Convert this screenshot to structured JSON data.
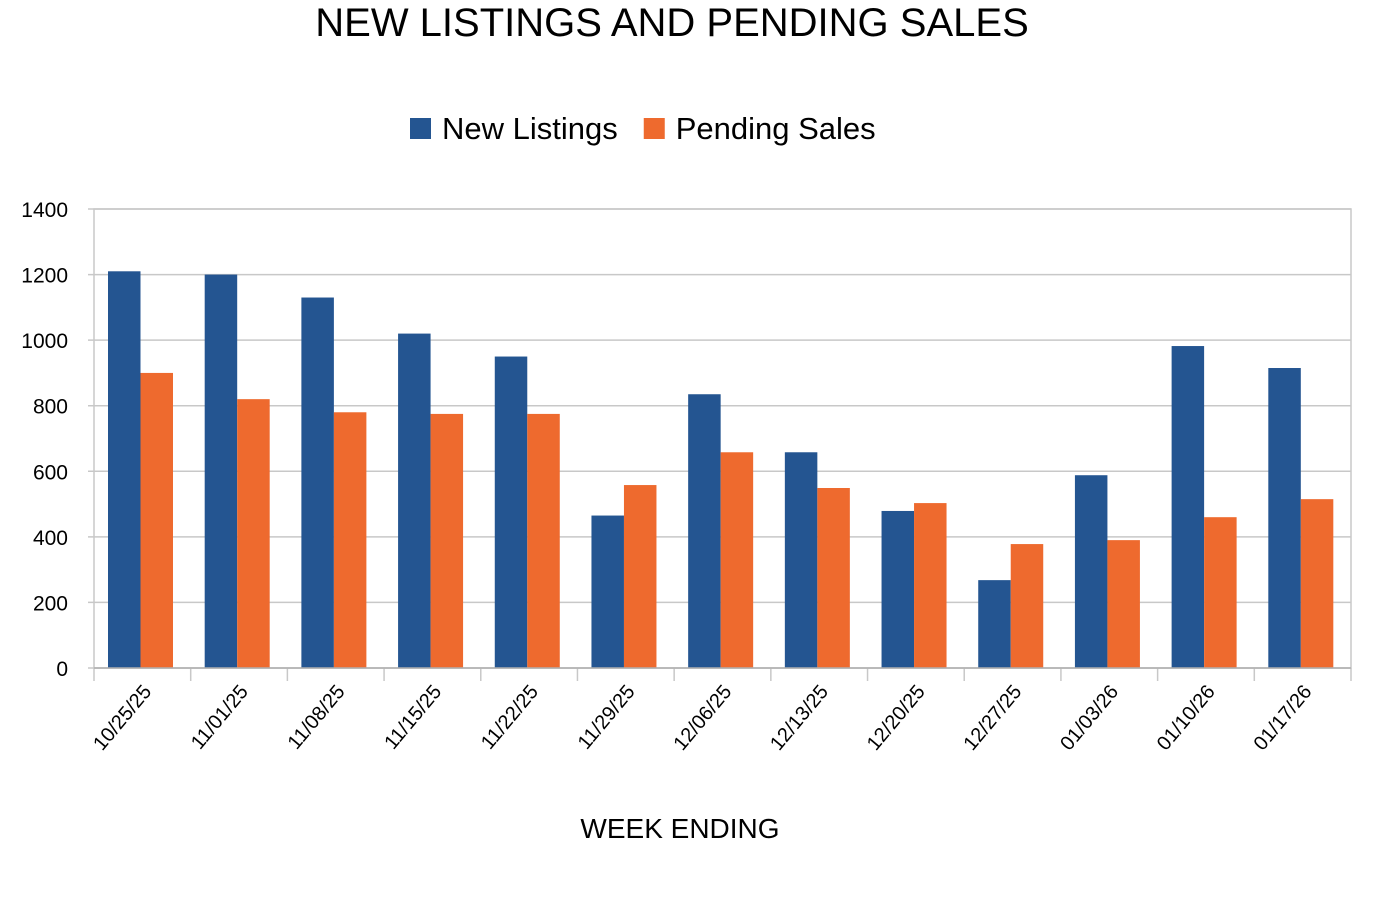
{
  "chart_data": {
    "type": "bar",
    "title": "NEW LISTINGS AND PENDING SALES",
    "xlabel": "WEEK ENDING",
    "ylabel": "",
    "ylim": [
      0,
      1400
    ],
    "yticks": [
      0,
      200,
      400,
      600,
      800,
      1000,
      1200,
      1400
    ],
    "grid": true,
    "legend_position": "top-center",
    "categories": [
      "10/25/25",
      "11/01/25",
      "11/08/25",
      "11/15/25",
      "11/22/25",
      "11/29/25",
      "12/06/25",
      "12/13/25",
      "12/20/25",
      "12/27/25",
      "01/03/26",
      "01/10/26",
      "01/17/26"
    ],
    "series": [
      {
        "name": "New Listings",
        "color": "#245591",
        "values": [
          1210,
          1200,
          1130,
          1020,
          950,
          465,
          835,
          658,
          479,
          268,
          588,
          982,
          915
        ]
      },
      {
        "name": "Pending Sales",
        "color": "#ee6a2e",
        "values": [
          900,
          820,
          780,
          775,
          775,
          558,
          658,
          549,
          503,
          378,
          390,
          460,
          515
        ]
      }
    ]
  }
}
